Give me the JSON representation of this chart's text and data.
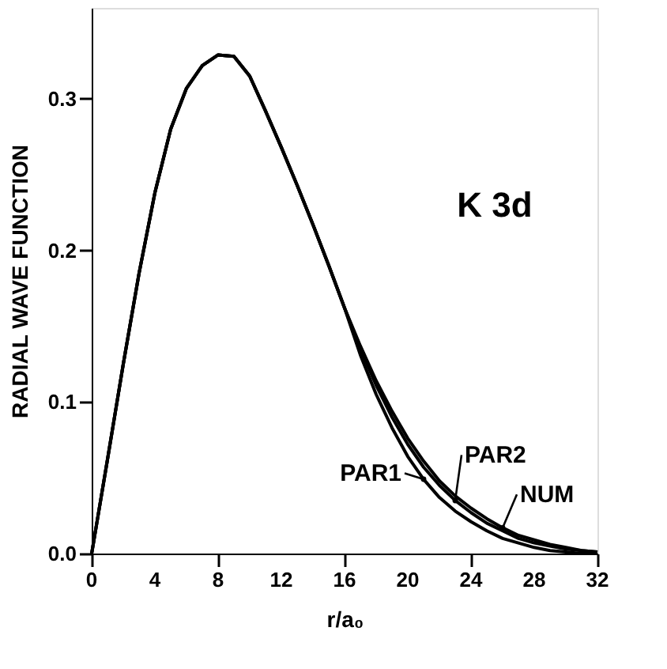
{
  "chart_data": {
    "type": "line",
    "xlabel": "r/a₀",
    "ylabel": "RADIAL WAVE FUNCTION",
    "annotations": [
      "K 3d"
    ],
    "x": [
      0,
      1,
      2,
      3,
      4,
      5,
      6,
      7,
      8,
      9,
      10,
      11,
      12,
      13,
      14,
      15,
      16,
      17,
      18,
      19,
      20,
      21,
      22,
      23,
      24,
      25,
      26,
      27,
      28,
      29,
      30,
      31,
      32
    ],
    "series": [
      {
        "name": "PAR1",
        "color": "#000000",
        "values": [
          0,
          0.062,
          0.125,
          0.185,
          0.238,
          0.28,
          0.307,
          0.322,
          0.329,
          0.328,
          0.315,
          0.292,
          0.268,
          0.243,
          0.217,
          0.19,
          0.162,
          0.131,
          0.105,
          0.083,
          0.064,
          0.049,
          0.037,
          0.028,
          0.021,
          0.015,
          0.01,
          0.007,
          0.004,
          0.002,
          0.001,
          0.0,
          0.0
        ]
      },
      {
        "name": "PAR2",
        "color": "#000000",
        "values": [
          0,
          0.062,
          0.125,
          0.185,
          0.238,
          0.28,
          0.307,
          0.322,
          0.329,
          0.328,
          0.315,
          0.292,
          0.268,
          0.243,
          0.217,
          0.19,
          0.162,
          0.135,
          0.111,
          0.09,
          0.072,
          0.057,
          0.045,
          0.035,
          0.027,
          0.02,
          0.015,
          0.01,
          0.007,
          0.005,
          0.003,
          0.002,
          0.001
        ]
      },
      {
        "name": "NUM",
        "color": "#000000",
        "values": [
          0,
          0.062,
          0.125,
          0.185,
          0.238,
          0.28,
          0.307,
          0.322,
          0.329,
          0.328,
          0.315,
          0.292,
          0.268,
          0.243,
          0.217,
          0.19,
          0.162,
          0.137,
          0.114,
          0.094,
          0.076,
          0.061,
          0.048,
          0.038,
          0.03,
          0.023,
          0.017,
          0.012,
          0.009,
          0.006,
          0.004,
          0.002,
          0.001
        ]
      }
    ],
    "xlim": [
      0,
      32
    ],
    "xticks": [
      0,
      4,
      8,
      12,
      16,
      20,
      24,
      28,
      32
    ],
    "ylim": [
      0,
      0.36
    ],
    "yticks": [
      {
        "value": 0,
        "label": "0.0"
      },
      {
        "value": 0.1,
        "label": "0.1"
      },
      {
        "value": 0.2,
        "label": "0.2"
      },
      {
        "value": 0.3,
        "label": "0.3"
      }
    ],
    "grid": false,
    "marker": "none",
    "line_style": "solid"
  }
}
